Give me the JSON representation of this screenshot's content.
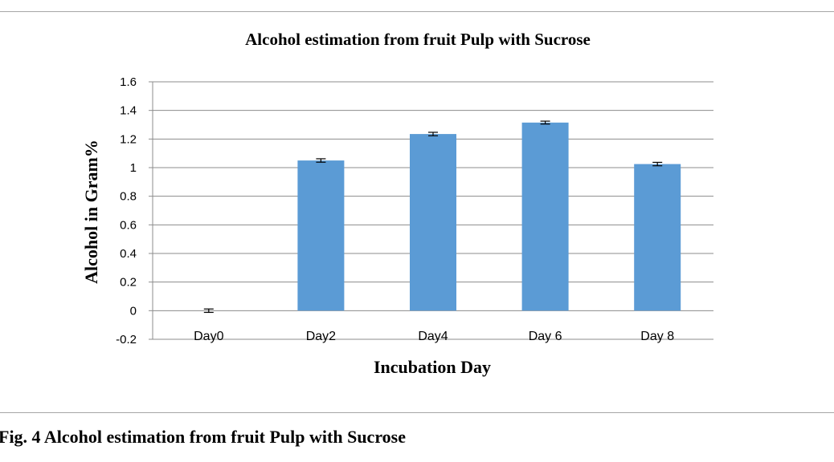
{
  "figure": {
    "caption": "Fig. 4 Alcohol estimation  from fruit Pulp with Sucrose"
  },
  "chart_data": {
    "type": "bar",
    "title": "Alcohol estimation  from fruit Pulp with Sucrose",
    "xlabel": "Incubation  Day",
    "ylabel": "Alcohol in Gram%",
    "categories": [
      "Day0",
      "Day2",
      "Day4",
      "Day 6",
      "Day 8"
    ],
    "values": [
      0,
      1.05,
      1.235,
      1.315,
      1.025
    ],
    "errors": [
      0.012,
      0.012,
      0.012,
      0.01,
      0.012
    ],
    "ylim": [
      -0.2,
      1.6
    ],
    "yticks": [
      -0.2,
      0,
      0.2,
      0.4,
      0.6,
      0.8,
      1,
      1.2,
      1.4,
      1.6
    ],
    "ytick_labels": [
      "-0.2",
      "0",
      "0.2",
      "0.4",
      "0.6",
      "0.8",
      "1",
      "1.2",
      "1.4",
      "1.6"
    ],
    "grid": true,
    "bar_color": "#5b9bd5"
  }
}
